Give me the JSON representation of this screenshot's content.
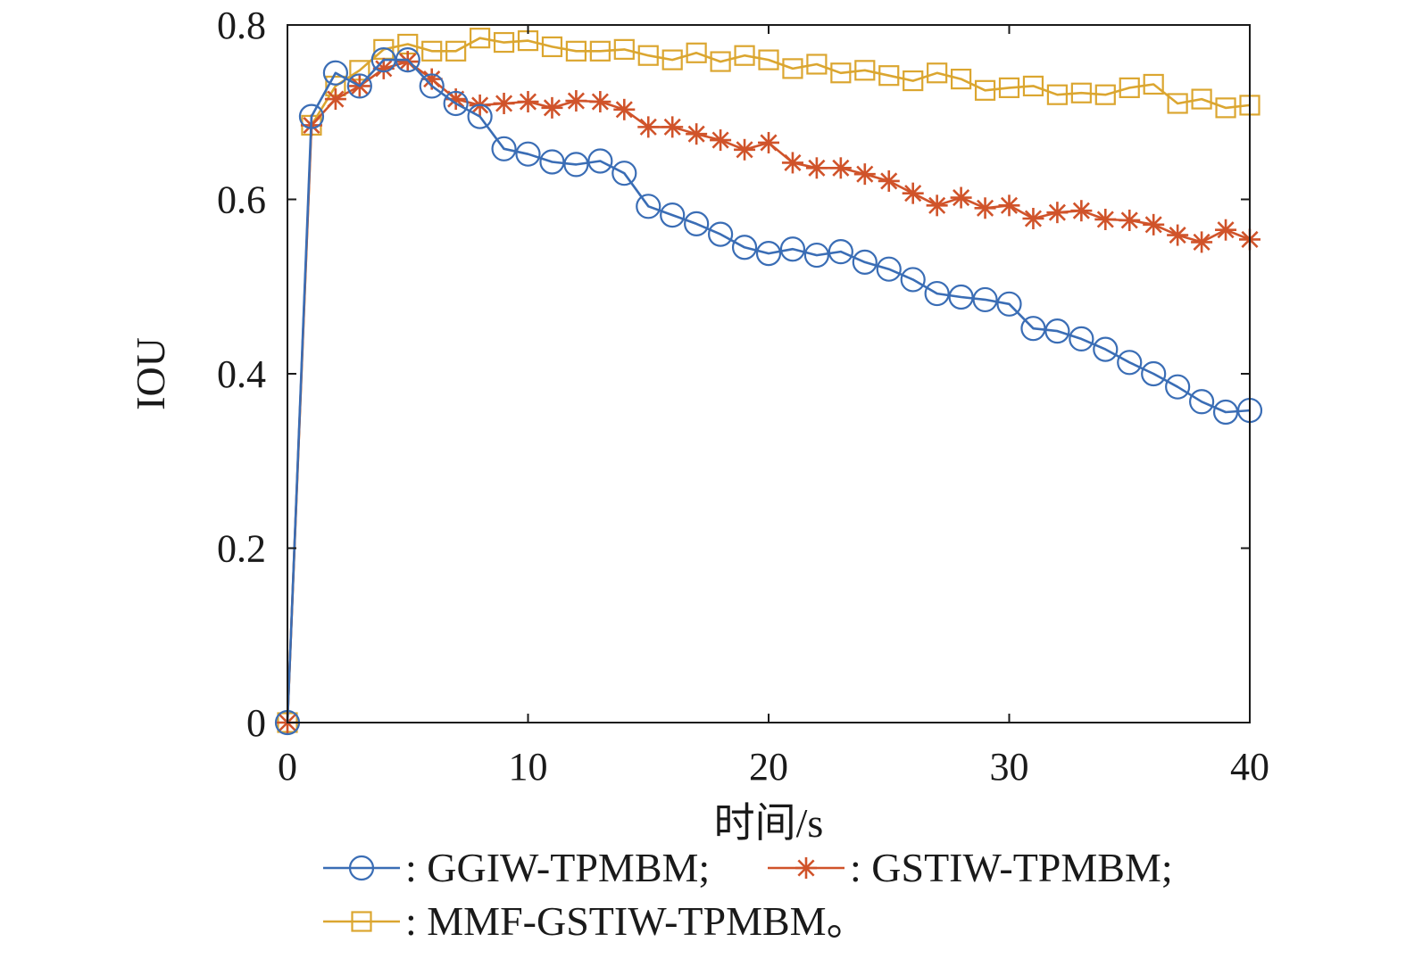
{
  "chart_data": {
    "type": "line",
    "title": "",
    "xlabel": "时间/s",
    "ylabel": "IOU",
    "xlim": [
      0,
      40
    ],
    "ylim": [
      0,
      0.8
    ],
    "x_ticks": [
      "0",
      "10",
      "20",
      "30",
      "40"
    ],
    "y_ticks": [
      "0",
      "0.2",
      "0.4",
      "0.6",
      "0.8"
    ],
    "grid": false,
    "legend_position": "bottom",
    "x": [
      0,
      1,
      2,
      3,
      4,
      5,
      6,
      7,
      8,
      9,
      10,
      11,
      12,
      13,
      14,
      15,
      16,
      17,
      18,
      19,
      20,
      21,
      22,
      23,
      24,
      25,
      26,
      27,
      28,
      29,
      30,
      31,
      32,
      33,
      34,
      35,
      36,
      37,
      38,
      39,
      40
    ],
    "series": [
      {
        "name": "GGIW-TPMBM",
        "legend_label": ": GGIW-TPMBM;",
        "color": "#3a6db5",
        "marker": "circle",
        "values": [
          0,
          0.695,
          0.745,
          0.73,
          0.76,
          0.76,
          0.73,
          0.71,
          0.695,
          0.658,
          0.652,
          0.643,
          0.64,
          0.644,
          0.63,
          0.592,
          0.582,
          0.572,
          0.56,
          0.545,
          0.538,
          0.543,
          0.536,
          0.54,
          0.528,
          0.52,
          0.508,
          0.492,
          0.488,
          0.485,
          0.48,
          0.452,
          0.449,
          0.44,
          0.428,
          0.413,
          0.4,
          0.385,
          0.368,
          0.356,
          0.358
        ]
      },
      {
        "name": "GSTIW-TPMBM",
        "legend_label": ": GSTIW-TPMBM;",
        "color": "#d0532a",
        "marker": "asterisk",
        "values": [
          0,
          0.685,
          0.715,
          0.73,
          0.75,
          0.758,
          0.738,
          0.715,
          0.708,
          0.71,
          0.712,
          0.705,
          0.713,
          0.712,
          0.703,
          0.683,
          0.683,
          0.675,
          0.668,
          0.657,
          0.665,
          0.642,
          0.636,
          0.636,
          0.629,
          0.621,
          0.607,
          0.593,
          0.602,
          0.59,
          0.593,
          0.578,
          0.585,
          0.587,
          0.577,
          0.576,
          0.571,
          0.559,
          0.551,
          0.565,
          0.554
        ]
      },
      {
        "name": "MMF-GSTIW-TPMBM",
        "legend_label": ": MMF-GSTIW-TPMBM。",
        "color": "#dba630",
        "marker": "square",
        "values": [
          0,
          0.685,
          0.73,
          0.748,
          0.772,
          0.778,
          0.77,
          0.77,
          0.785,
          0.78,
          0.782,
          0.775,
          0.77,
          0.77,
          0.772,
          0.765,
          0.76,
          0.768,
          0.758,
          0.765,
          0.76,
          0.75,
          0.755,
          0.745,
          0.748,
          0.742,
          0.736,
          0.745,
          0.738,
          0.725,
          0.728,
          0.73,
          0.72,
          0.722,
          0.72,
          0.728,
          0.732,
          0.71,
          0.715,
          0.705,
          0.708
        ]
      }
    ]
  }
}
